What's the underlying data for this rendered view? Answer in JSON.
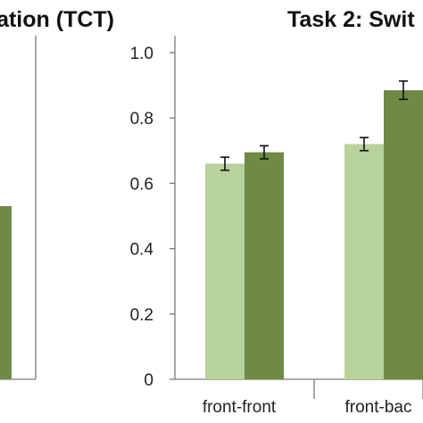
{
  "chart_data": [
    {
      "type": "bar",
      "title": "ation (TCT)",
      "partial": true,
      "categories": [
        ""
      ],
      "series": [
        {
          "values": [
            null
          ],
          "color": "#b7d29a"
        },
        {
          "values": [
            0.53
          ],
          "color": "#6e8a45"
        }
      ],
      "ylim": [
        0,
        1.0
      ],
      "grid": false
    },
    {
      "type": "bar",
      "title": "Task 2: Swit",
      "partial": true,
      "categories": [
        "front-front",
        "front-bac"
      ],
      "series": [
        {
          "values": [
            0.66,
            0.72
          ],
          "errors": [
            0.02,
            0.02
          ],
          "color": "#b7d29a"
        },
        {
          "values": [
            0.695,
            0.885
          ],
          "errors": [
            0.02,
            0.028
          ],
          "color": "#6e8a45"
        }
      ],
      "ylim": [
        0,
        1.0
      ],
      "yticks": [
        "0",
        "0.2",
        "0.4",
        "0.6",
        "0.8",
        "1.0"
      ],
      "grid": false
    }
  ]
}
